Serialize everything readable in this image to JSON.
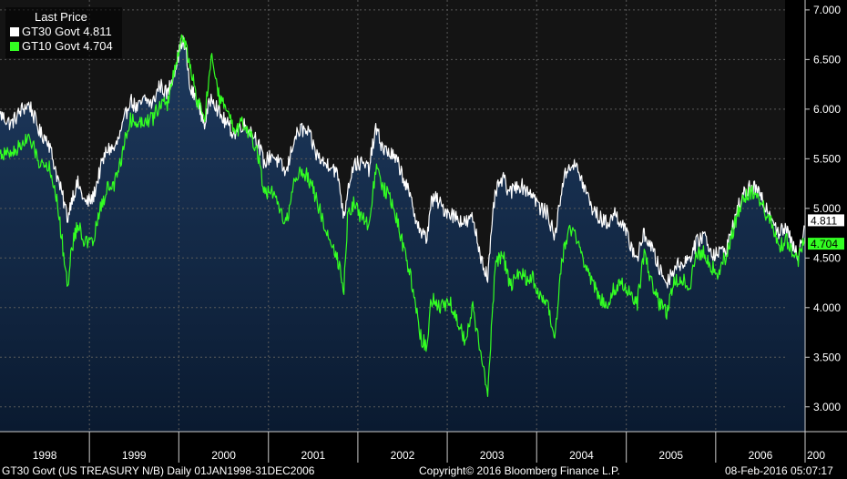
{
  "chart_data": {
    "type": "line",
    "legend_title": "Last Price",
    "legend_position": "top-left",
    "series": [
      {
        "name": "GT30 Govt",
        "last": "4.811",
        "color": "#ffffff",
        "area_fill": true,
        "points": [
          [
            "1998-01-01",
            5.95
          ],
          [
            "1998-02-15",
            5.85
          ],
          [
            "1998-04-01",
            6.0
          ],
          [
            "1998-05-01",
            6.05
          ],
          [
            "1998-06-15",
            5.75
          ],
          [
            "1998-07-15",
            5.7
          ],
          [
            "1998-08-15",
            5.4
          ],
          [
            "1998-09-15",
            5.1
          ],
          [
            "1998-10-05",
            4.9
          ],
          [
            "1998-10-20",
            5.1
          ],
          [
            "1998-11-15",
            5.25
          ],
          [
            "1998-12-15",
            5.05
          ],
          [
            "1999-01-15",
            5.1
          ],
          [
            "1999-02-15",
            5.4
          ],
          [
            "1999-03-15",
            5.6
          ],
          [
            "1999-04-15",
            5.6
          ],
          [
            "1999-05-15",
            5.8
          ],
          [
            "1999-06-15",
            6.1
          ],
          [
            "1999-07-15",
            6.0
          ],
          [
            "1999-08-15",
            6.1
          ],
          [
            "1999-09-15",
            6.05
          ],
          [
            "1999-10-15",
            6.25
          ],
          [
            "1999-11-15",
            6.15
          ],
          [
            "1999-12-15",
            6.4
          ],
          [
            "2000-01-15",
            6.7
          ],
          [
            "2000-02-01",
            6.55
          ],
          [
            "2000-02-15",
            6.2
          ],
          [
            "2000-03-15",
            6.1
          ],
          [
            "2000-04-15",
            5.85
          ],
          [
            "2000-05-15",
            6.15
          ],
          [
            "2000-06-15",
            5.95
          ],
          [
            "2000-07-15",
            5.85
          ],
          [
            "2000-08-15",
            5.75
          ],
          [
            "2000-09-15",
            5.85
          ],
          [
            "2000-10-15",
            5.8
          ],
          [
            "2000-11-15",
            5.7
          ],
          [
            "2000-12-15",
            5.45
          ],
          [
            "2001-01-15",
            5.55
          ],
          [
            "2001-02-15",
            5.45
          ],
          [
            "2001-03-15",
            5.35
          ],
          [
            "2001-04-15",
            5.7
          ],
          [
            "2001-05-15",
            5.8
          ],
          [
            "2001-06-15",
            5.75
          ],
          [
            "2001-07-15",
            5.55
          ],
          [
            "2001-08-15",
            5.45
          ],
          [
            "2001-09-15",
            5.45
          ],
          [
            "2001-10-15",
            5.3
          ],
          [
            "2001-11-05",
            4.9
          ],
          [
            "2001-11-20",
            5.2
          ],
          [
            "2001-12-15",
            5.45
          ],
          [
            "2002-01-15",
            5.45
          ],
          [
            "2002-02-15",
            5.4
          ],
          [
            "2002-03-15",
            5.8
          ],
          [
            "2002-04-15",
            5.6
          ],
          [
            "2002-05-15",
            5.55
          ],
          [
            "2002-06-15",
            5.45
          ],
          [
            "2002-07-15",
            5.25
          ],
          [
            "2002-08-15",
            5.0
          ],
          [
            "2002-09-15",
            4.75
          ],
          [
            "2002-10-10",
            4.7
          ],
          [
            "2002-10-25",
            5.05
          ],
          [
            "2002-11-15",
            5.1
          ],
          [
            "2002-12-15",
            5.0
          ],
          [
            "2003-01-15",
            4.95
          ],
          [
            "2003-02-15",
            4.9
          ],
          [
            "2003-03-15",
            4.85
          ],
          [
            "2003-04-15",
            4.9
          ],
          [
            "2003-05-15",
            4.55
          ],
          [
            "2003-06-15",
            4.3
          ],
          [
            "2003-07-15",
            5.15
          ],
          [
            "2003-08-15",
            5.3
          ],
          [
            "2003-09-15",
            5.15
          ],
          [
            "2003-10-15",
            5.25
          ],
          [
            "2003-11-15",
            5.2
          ],
          [
            "2003-12-15",
            5.15
          ],
          [
            "2004-01-15",
            5.0
          ],
          [
            "2004-02-15",
            4.95
          ],
          [
            "2004-03-15",
            4.7
          ],
          [
            "2004-04-15",
            5.25
          ],
          [
            "2004-05-15",
            5.45
          ],
          [
            "2004-06-15",
            5.4
          ],
          [
            "2004-07-15",
            5.2
          ],
          [
            "2004-08-15",
            5.0
          ],
          [
            "2004-09-15",
            4.9
          ],
          [
            "2004-10-15",
            4.85
          ],
          [
            "2004-11-15",
            4.95
          ],
          [
            "2004-12-15",
            4.85
          ],
          [
            "2005-01-15",
            4.65
          ],
          [
            "2005-02-15",
            4.5
          ],
          [
            "2005-03-15",
            4.75
          ],
          [
            "2005-04-15",
            4.6
          ],
          [
            "2005-05-15",
            4.4
          ],
          [
            "2005-06-15",
            4.25
          ],
          [
            "2005-07-15",
            4.4
          ],
          [
            "2005-08-15",
            4.45
          ],
          [
            "2005-09-15",
            4.5
          ],
          [
            "2005-10-15",
            4.65
          ],
          [
            "2005-11-15",
            4.75
          ],
          [
            "2005-12-15",
            4.55
          ],
          [
            "2006-01-15",
            4.55
          ],
          [
            "2006-02-15",
            4.6
          ],
          [
            "2006-03-15",
            4.85
          ],
          [
            "2006-04-15",
            5.1
          ],
          [
            "2006-05-15",
            5.2
          ],
          [
            "2006-06-15",
            5.2
          ],
          [
            "2006-07-15",
            5.05
          ],
          [
            "2006-08-15",
            4.95
          ],
          [
            "2006-09-15",
            4.75
          ],
          [
            "2006-10-15",
            4.8
          ],
          [
            "2006-11-15",
            4.6
          ],
          [
            "2006-12-01",
            4.55
          ],
          [
            "2006-12-31",
            4.811
          ]
        ]
      },
      {
        "name": "GT10 Govt",
        "last": "4.704",
        "color": "#33ff22",
        "area_fill": false,
        "points": [
          [
            "1998-01-01",
            5.55
          ],
          [
            "1998-02-15",
            5.55
          ],
          [
            "1998-04-01",
            5.65
          ],
          [
            "1998-05-01",
            5.7
          ],
          [
            "1998-06-15",
            5.45
          ],
          [
            "1998-07-15",
            5.45
          ],
          [
            "1998-08-15",
            5.2
          ],
          [
            "1998-09-15",
            4.6
          ],
          [
            "1998-10-05",
            4.2
          ],
          [
            "1998-10-20",
            4.6
          ],
          [
            "1998-11-15",
            4.85
          ],
          [
            "1998-12-15",
            4.65
          ],
          [
            "1999-01-15",
            4.65
          ],
          [
            "1999-02-15",
            5.0
          ],
          [
            "1999-03-15",
            5.2
          ],
          [
            "1999-04-15",
            5.25
          ],
          [
            "1999-05-15",
            5.55
          ],
          [
            "1999-06-15",
            5.9
          ],
          [
            "1999-07-15",
            5.85
          ],
          [
            "1999-08-15",
            5.9
          ],
          [
            "1999-09-15",
            5.9
          ],
          [
            "1999-10-15",
            6.05
          ],
          [
            "1999-11-15",
            6.05
          ],
          [
            "1999-12-15",
            6.4
          ],
          [
            "2000-01-15",
            6.75
          ],
          [
            "2000-02-01",
            6.6
          ],
          [
            "2000-02-15",
            6.45
          ],
          [
            "2000-03-15",
            6.1
          ],
          [
            "2000-04-15",
            5.9
          ],
          [
            "2000-05-15",
            6.55
          ],
          [
            "2000-06-15",
            6.1
          ],
          [
            "2000-07-15",
            6.0
          ],
          [
            "2000-08-15",
            5.75
          ],
          [
            "2000-09-15",
            5.85
          ],
          [
            "2000-10-15",
            5.75
          ],
          [
            "2000-11-15",
            5.6
          ],
          [
            "2000-12-15",
            5.15
          ],
          [
            "2001-01-15",
            5.15
          ],
          [
            "2001-02-15",
            5.0
          ],
          [
            "2001-03-15",
            4.85
          ],
          [
            "2001-04-15",
            5.25
          ],
          [
            "2001-05-15",
            5.4
          ],
          [
            "2001-06-15",
            5.3
          ],
          [
            "2001-07-15",
            5.1
          ],
          [
            "2001-08-15",
            4.85
          ],
          [
            "2001-09-15",
            4.65
          ],
          [
            "2001-10-15",
            4.45
          ],
          [
            "2001-11-05",
            4.2
          ],
          [
            "2001-11-20",
            4.9
          ],
          [
            "2001-12-15",
            5.05
          ],
          [
            "2002-01-15",
            4.9
          ],
          [
            "2002-02-15",
            4.85
          ],
          [
            "2002-03-15",
            5.4
          ],
          [
            "2002-04-15",
            5.2
          ],
          [
            "2002-05-15",
            5.1
          ],
          [
            "2002-06-15",
            4.85
          ],
          [
            "2002-07-15",
            4.5
          ],
          [
            "2002-08-15",
            4.2
          ],
          [
            "2002-09-15",
            3.7
          ],
          [
            "2002-10-10",
            3.6
          ],
          [
            "2002-10-25",
            4.1
          ],
          [
            "2002-11-15",
            4.05
          ],
          [
            "2002-12-15",
            4.0
          ],
          [
            "2003-01-15",
            4.05
          ],
          [
            "2003-02-15",
            3.85
          ],
          [
            "2003-03-15",
            3.65
          ],
          [
            "2003-04-15",
            4.0
          ],
          [
            "2003-05-15",
            3.55
          ],
          [
            "2003-06-15",
            3.15
          ],
          [
            "2003-07-15",
            4.4
          ],
          [
            "2003-08-15",
            4.55
          ],
          [
            "2003-09-15",
            4.2
          ],
          [
            "2003-10-15",
            4.35
          ],
          [
            "2003-11-15",
            4.3
          ],
          [
            "2003-12-15",
            4.3
          ],
          [
            "2004-01-15",
            4.1
          ],
          [
            "2004-02-15",
            4.0
          ],
          [
            "2004-03-15",
            3.7
          ],
          [
            "2004-04-15",
            4.5
          ],
          [
            "2004-05-15",
            4.8
          ],
          [
            "2004-06-15",
            4.7
          ],
          [
            "2004-07-15",
            4.45
          ],
          [
            "2004-08-15",
            4.25
          ],
          [
            "2004-09-15",
            4.1
          ],
          [
            "2004-10-15",
            4.05
          ],
          [
            "2004-11-15",
            4.2
          ],
          [
            "2004-12-15",
            4.25
          ],
          [
            "2005-01-15",
            4.15
          ],
          [
            "2005-02-15",
            4.05
          ],
          [
            "2005-03-15",
            4.55
          ],
          [
            "2005-04-15",
            4.25
          ],
          [
            "2005-05-15",
            4.05
          ],
          [
            "2005-06-15",
            3.95
          ],
          [
            "2005-07-15",
            4.25
          ],
          [
            "2005-08-15",
            4.3
          ],
          [
            "2005-09-15",
            4.2
          ],
          [
            "2005-10-15",
            4.55
          ],
          [
            "2005-11-15",
            4.55
          ],
          [
            "2005-12-15",
            4.4
          ],
          [
            "2006-01-15",
            4.35
          ],
          [
            "2006-02-15",
            4.55
          ],
          [
            "2006-03-15",
            4.8
          ],
          [
            "2006-04-15",
            5.05
          ],
          [
            "2006-05-15",
            5.15
          ],
          [
            "2006-06-15",
            5.15
          ],
          [
            "2006-07-15",
            5.0
          ],
          [
            "2006-08-15",
            4.85
          ],
          [
            "2006-09-15",
            4.6
          ],
          [
            "2006-10-15",
            4.7
          ],
          [
            "2006-11-15",
            4.55
          ],
          [
            "2006-12-01",
            4.45
          ],
          [
            "2006-12-31",
            4.704
          ]
        ]
      }
    ],
    "x_range": [
      "1998-01-01",
      "2007-01-01"
    ],
    "x_tick_labels": [
      "1998",
      "1999",
      "2000",
      "2001",
      "2002",
      "2003",
      "2004",
      "2005",
      "2006",
      "200"
    ],
    "ylim": [
      2.75,
      7.1
    ],
    "y_ticks": [
      3.0,
      3.5,
      4.0,
      4.5,
      5.0,
      5.5,
      6.0,
      6.5,
      7.0
    ],
    "y_tick_labels": [
      "3.000",
      "3.500",
      "4.000",
      "4.500",
      "5.000",
      "5.500",
      "6.000",
      "6.500",
      "7.000"
    ],
    "y_axis_side": "right",
    "grid": "vertical dashed at year boundaries, horizontal dashed at y ticks",
    "colors": {
      "background": "#141414",
      "area_top": "#1e3a5f",
      "area_bottom": "#0a1a30",
      "grid": "#5a5a5a"
    }
  },
  "footer": {
    "left": "GT30 Govt (US TREASURY N/B)  Daily 01JAN1998-31DEC2006",
    "center": "Copyright© 2016 Bloomberg Finance L.P.",
    "right": "08-Feb-2016 05:07:17"
  }
}
